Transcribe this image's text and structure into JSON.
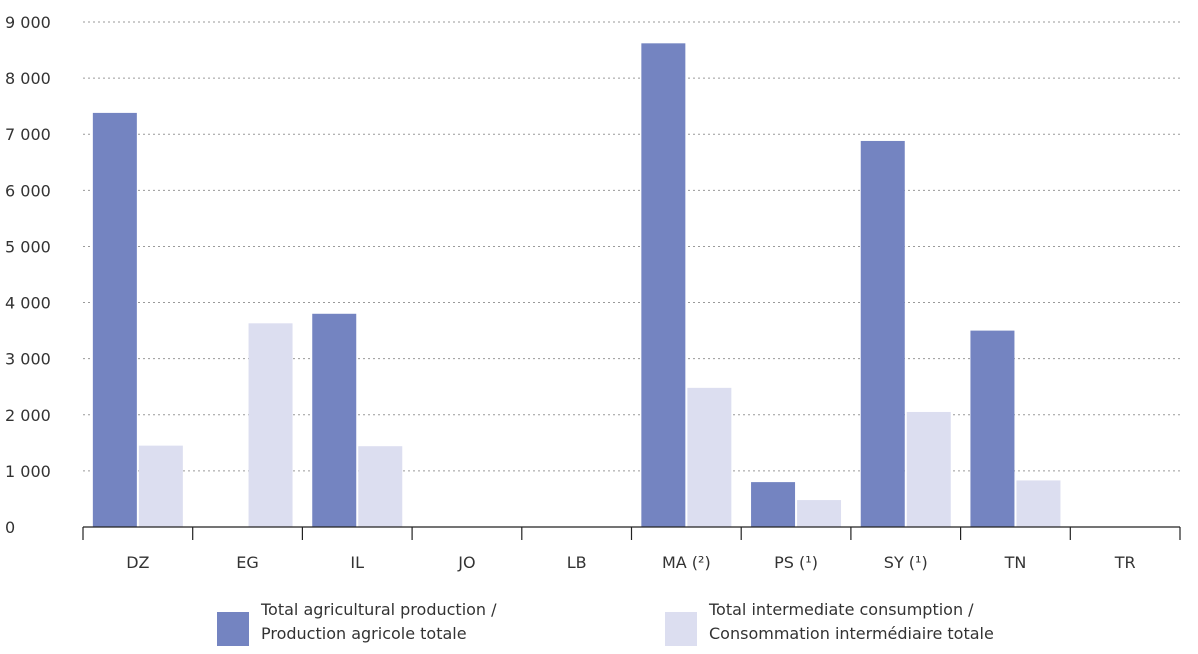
{
  "chart_data": {
    "type": "bar",
    "categories": [
      "DZ",
      "EG",
      "IL",
      "JO",
      "LB",
      "MA (²)",
      "PS (¹)",
      "SY (¹)",
      "TN",
      "TR"
    ],
    "series": [
      {
        "name": "Total agricultural production / Production agricole totale",
        "legend_lines": [
          "Total agricultural production /",
          "Production agricole totale"
        ],
        "color": "#7484c1",
        "values": [
          7380,
          null,
          3800,
          null,
          null,
          8620,
          800,
          6880,
          3500,
          null
        ]
      },
      {
        "name": "Total intermediate consumption / Consommation intermédiaire totale",
        "legend_lines": [
          "Total intermediate consumption /",
          "Consommation intermédiaire totale"
        ],
        "color": "#dcdef0",
        "values": [
          1450,
          3630,
          1440,
          null,
          null,
          2480,
          480,
          2050,
          830,
          null
        ]
      }
    ],
    "yticks": [
      0,
      1000,
      2000,
      3000,
      4000,
      5000,
      6000,
      7000,
      8000,
      9000
    ],
    "ytick_labels": [
      "0",
      "1 000",
      "2 000",
      "3 000",
      "4 000",
      "5 000",
      "6 000",
      "7 000",
      "8 000",
      "9 000"
    ],
    "ylim": [
      0,
      9000
    ],
    "grid": true,
    "legend_position": "bottom",
    "title": "",
    "xlabel": "",
    "ylabel": ""
  }
}
